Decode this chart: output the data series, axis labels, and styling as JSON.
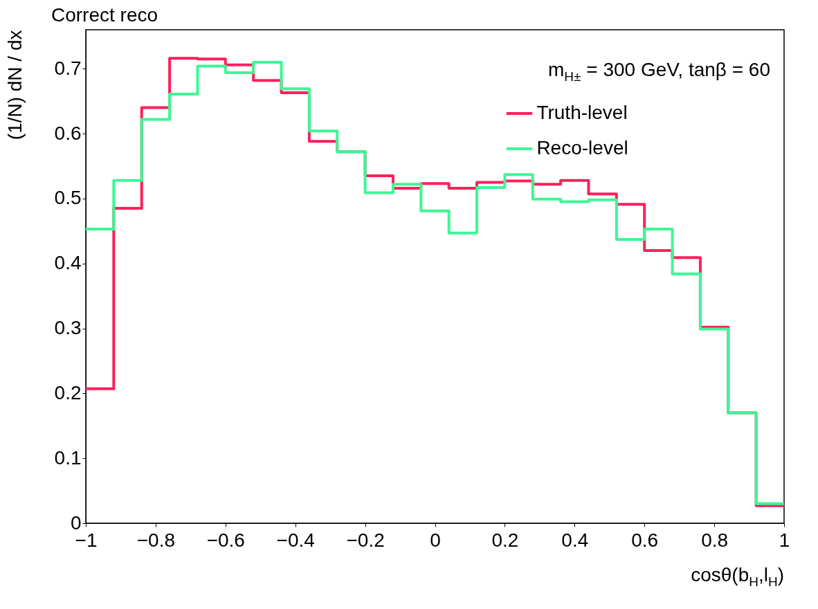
{
  "chart_data": {
    "type": "histogram",
    "title": "Correct reco",
    "xlabel": "cosθ(b$_{H}$,l$_{H}$)",
    "ylabel": "(1/N) dN / dx",
    "annotations": [
      "m$_{H±}$ = 300 GeV,  tanβ = 60"
    ],
    "bins": [
      -1,
      -0.92,
      -0.84,
      -0.76,
      -0.68,
      -0.6,
      -0.52,
      -0.44,
      -0.36,
      -0.28,
      -0.2,
      -0.12,
      -0.04,
      0.04,
      0.12,
      0.2,
      0.28,
      0.36,
      0.44,
      0.52,
      0.6,
      0.68,
      0.76,
      0.84,
      0.92,
      1
    ],
    "series": [
      {
        "name": "Truth-level",
        "color": "#ff1f5b",
        "values": [
          0.207,
          0.485,
          0.64,
          0.716,
          0.715,
          0.706,
          0.682,
          0.663,
          0.588,
          0.572,
          0.535,
          0.516,
          0.523,
          0.516,
          0.525,
          0.527,
          0.522,
          0.528,
          0.507,
          0.491,
          0.42,
          0.409,
          0.302,
          0.17,
          0.027
        ]
      },
      {
        "name": "Reco-level",
        "color": "#3cf796",
        "values": [
          0.453,
          0.528,
          0.622,
          0.661,
          0.704,
          0.694,
          0.71,
          0.669,
          0.604,
          0.572,
          0.509,
          0.522,
          0.481,
          0.447,
          0.517,
          0.537,
          0.499,
          0.495,
          0.498,
          0.437,
          0.453,
          0.384,
          0.299,
          0.17,
          0.03
        ]
      }
    ],
    "xlim": [
      -1,
      1
    ],
    "ylim": [
      0,
      0.76
    ],
    "xticks": [
      {
        "value": -1,
        "label": "−1"
      },
      {
        "value": -0.8,
        "label": "−0.8"
      },
      {
        "value": -0.6,
        "label": "−0.6"
      },
      {
        "value": -0.4,
        "label": "−0.4"
      },
      {
        "value": -0.2,
        "label": "−0.2"
      },
      0,
      0.2,
      0.4,
      0.6,
      0.8,
      1
    ],
    "yticks": [
      0,
      0.1,
      0.2,
      0.3,
      0.4,
      0.5,
      0.6,
      0.7
    ],
    "legend": "top right",
    "grid": false
  }
}
